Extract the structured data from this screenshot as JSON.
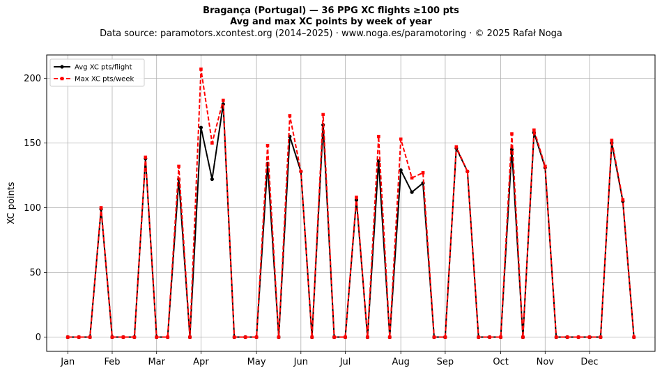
{
  "header": {
    "title_line1": "Bragança (Portugal)  —  36 PPG XC flights ≥100 pts",
    "title_line2": "Avg and max XC points by week of year",
    "subtitle": "Data source: paramotors.xcontest.org (2014–2025)  ·  www.noga.es/paramotoring  ·  © 2025 Rafał Noga"
  },
  "chart_data": {
    "type": "line",
    "ylabel": "XC points",
    "xlabel": "",
    "xlim": [
      0.1,
      54.9
    ],
    "ylim": [
      -11,
      218
    ],
    "yticks": [
      0,
      50,
      100,
      150,
      200
    ],
    "xticks": [
      {
        "week": 2,
        "label": "Jan"
      },
      {
        "week": 6,
        "label": "Feb"
      },
      {
        "week": 10,
        "label": "Mar"
      },
      {
        "week": 14,
        "label": "Apr"
      },
      {
        "week": 19,
        "label": "May"
      },
      {
        "week": 23,
        "label": "Jun"
      },
      {
        "week": 27,
        "label": "Jul"
      },
      {
        "week": 32,
        "label": "Aug"
      },
      {
        "week": 36,
        "label": "Sep"
      },
      {
        "week": 41,
        "label": "Oct"
      },
      {
        "week": 45,
        "label": "Nov"
      },
      {
        "week": 49,
        "label": "Dec"
      }
    ],
    "grid": true,
    "legend_position": "top-left",
    "x": [
      2,
      3,
      4,
      5,
      6,
      7,
      8,
      9,
      10,
      11,
      12,
      13,
      14,
      15,
      16,
      17,
      18,
      19,
      20,
      21,
      22,
      23,
      24,
      25,
      26,
      27,
      28,
      29,
      30,
      31,
      32,
      33,
      34,
      35,
      36,
      37,
      38,
      39,
      40,
      41,
      42,
      43,
      44,
      45,
      46,
      47,
      48,
      49,
      50,
      51,
      52,
      53
    ],
    "series": [
      {
        "name": "Avg XC pts/flight",
        "color": "#000000",
        "style": "solid-circle",
        "values": [
          0,
          0,
          0,
          99,
          0,
          0,
          0,
          138,
          0,
          0,
          122,
          0,
          162,
          122,
          180,
          0,
          0,
          0,
          134,
          0,
          155,
          128,
          0,
          164,
          0,
          0,
          106,
          0,
          136,
          0,
          129,
          112,
          119,
          0,
          0,
          146,
          128,
          0,
          0,
          0,
          145,
          0,
          158,
          131,
          0,
          0,
          0,
          0,
          0,
          150,
          105,
          0
        ]
      },
      {
        "name": "Max XC pts/week",
        "color": "#ff0000",
        "style": "dashed-square",
        "values": [
          0,
          0,
          0,
          100,
          0,
          0,
          0,
          139,
          0,
          0,
          132,
          0,
          207,
          150,
          183,
          0,
          0,
          0,
          148,
          0,
          171,
          128,
          0,
          172,
          0,
          0,
          108,
          0,
          155,
          0,
          153,
          123,
          127,
          0,
          0,
          147,
          128,
          0,
          0,
          0,
          157,
          0,
          160,
          132,
          0,
          0,
          0,
          0,
          0,
          152,
          106,
          0
        ]
      }
    ]
  }
}
